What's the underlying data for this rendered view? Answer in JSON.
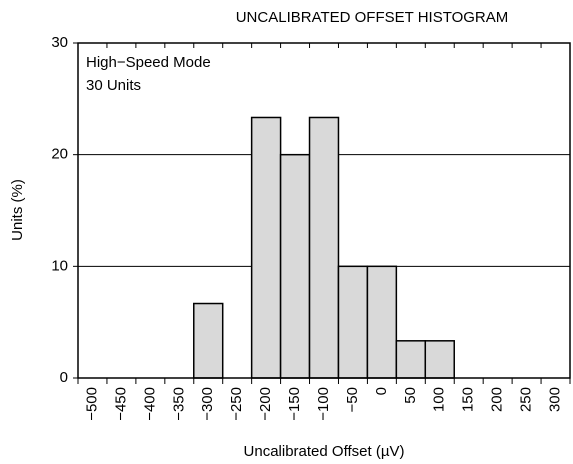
{
  "chart_data": {
    "type": "histogram",
    "title": "UNCALIBRATED OFFSET HISTOGRAM",
    "xlabel": "Uncalibrated Offset (µV)",
    "ylabel": "Units (%)",
    "annotations": [
      "High−Speed Mode",
      "30 Units"
    ],
    "bins": [
      -525,
      -475,
      -425,
      -375,
      -325,
      -275,
      -225,
      -175,
      -125,
      -75,
      -25,
      25,
      75,
      125,
      175,
      225,
      275,
      325
    ],
    "values": [
      0,
      0,
      0,
      0,
      6.67,
      0,
      23.33,
      20,
      23.33,
      10,
      10,
      3.33,
      3.33,
      0,
      0,
      0,
      0
    ],
    "color": "#d9d9d9",
    "xlim": [
      -525,
      325
    ],
    "xticks": [
      {
        "value": -500,
        "label": "−500"
      },
      {
        "value": -450,
        "label": "−450"
      },
      {
        "value": -400,
        "label": "−400"
      },
      {
        "value": -350,
        "label": "−350"
      },
      {
        "value": -300,
        "label": "−300"
      },
      {
        "value": -250,
        "label": "−250"
      },
      {
        "value": -200,
        "label": "−200"
      },
      {
        "value": -150,
        "label": "−150"
      },
      {
        "value": -100,
        "label": "−100"
      },
      {
        "value": -50,
        "label": "−50"
      },
      0,
      50,
      100,
      150,
      200,
      250,
      300
    ],
    "ylim": [
      0,
      30
    ],
    "yticks": [
      0,
      10,
      20,
      30
    ],
    "grid": true
  }
}
